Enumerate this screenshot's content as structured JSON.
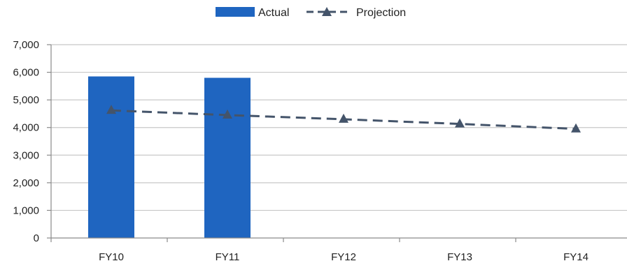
{
  "chart_data": {
    "type": "bar",
    "categories": [
      "FY10",
      "FY11",
      "FY12",
      "FY13",
      "FY14"
    ],
    "ylim": [
      0,
      7000
    ],
    "yticks": [
      0,
      1000,
      2000,
      3000,
      4000,
      5000,
      6000,
      7000
    ],
    "ytick_labels": [
      "0",
      "1,000",
      "2,000",
      "3,000",
      "4,000",
      "5,000",
      "6,000",
      "7,000"
    ],
    "grid": true,
    "legend": "top-center",
    "series": [
      {
        "name": "Actual",
        "type": "bar",
        "color": "#1f65c0",
        "values": [
          5850,
          5800,
          null,
          null,
          null
        ]
      },
      {
        "name": "Projection",
        "type": "line",
        "style": "dashed",
        "marker": "triangle",
        "color": "#44546a",
        "values": [
          4620,
          4450,
          4300,
          4130,
          3950
        ]
      }
    ]
  }
}
